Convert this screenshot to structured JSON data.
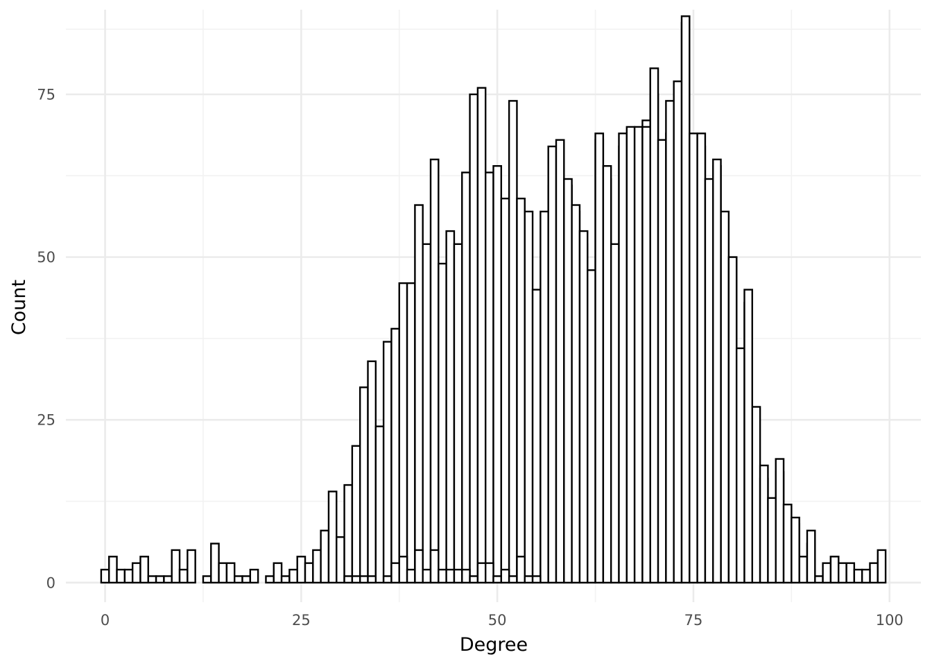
{
  "chart_data": {
    "type": "bar",
    "subtype": "histogram, two overlaid outlined series, bin width 1",
    "title": "",
    "xlabel": "Degree",
    "ylabel": "Count",
    "xlim": [
      -5,
      104
    ],
    "ylim": [
      -3,
      88
    ],
    "x_major_ticks": [
      0,
      25,
      50,
      75,
      100
    ],
    "x_minor_ticks": [
      12.5,
      37.5,
      62.5,
      87.5
    ],
    "y_major_ticks": [
      0,
      25,
      50,
      75
    ],
    "y_minor_ticks": [
      12.5,
      37.5,
      62.5,
      85
    ],
    "x_tick_labels": [
      "0",
      "25",
      "50",
      "75",
      "100"
    ],
    "y_tick_labels": [
      "0",
      "25",
      "50",
      "75"
    ],
    "grid": true,
    "legend": "none",
    "fill_color": "#ffffff",
    "outline_color": "#000000",
    "series": [
      {
        "bins": [
          [
            0,
            2
          ],
          [
            1,
            4
          ],
          [
            2,
            2
          ],
          [
            3,
            2
          ],
          [
            4,
            3
          ],
          [
            5,
            4
          ],
          [
            6,
            1
          ],
          [
            7,
            1
          ],
          [
            8,
            1
          ],
          [
            9,
            5
          ],
          [
            10,
            2
          ],
          [
            11,
            5
          ],
          [
            13,
            1
          ],
          [
            14,
            6
          ],
          [
            15,
            3
          ],
          [
            16,
            3
          ],
          [
            17,
            1
          ],
          [
            18,
            1
          ],
          [
            19,
            2
          ],
          [
            21,
            1
          ],
          [
            22,
            3
          ],
          [
            23,
            1
          ],
          [
            24,
            2
          ],
          [
            25,
            4
          ],
          [
            26,
            3
          ],
          [
            27,
            5
          ],
          [
            28,
            8
          ],
          [
            29,
            14
          ],
          [
            30,
            7
          ],
          [
            31,
            15
          ],
          [
            32,
            21
          ],
          [
            33,
            30
          ],
          [
            34,
            34
          ],
          [
            35,
            24
          ],
          [
            36,
            37
          ],
          [
            37,
            39
          ],
          [
            38,
            46
          ],
          [
            39,
            46
          ],
          [
            40,
            58
          ],
          [
            41,
            52
          ],
          [
            42,
            65
          ],
          [
            43,
            49
          ],
          [
            44,
            54
          ],
          [
            45,
            52
          ],
          [
            46,
            63
          ],
          [
            47,
            75
          ],
          [
            48,
            76
          ],
          [
            49,
            63
          ],
          [
            50,
            64
          ],
          [
            51,
            59
          ],
          [
            52,
            74
          ],
          [
            53,
            59
          ],
          [
            54,
            57
          ],
          [
            55,
            45
          ],
          [
            56,
            57
          ],
          [
            57,
            61
          ],
          [
            58,
            65
          ],
          [
            59,
            61
          ],
          [
            60,
            57
          ],
          [
            61,
            52
          ],
          [
            62,
            46
          ],
          [
            63,
            68
          ],
          [
            64,
            62
          ],
          [
            65,
            49
          ],
          [
            66,
            67
          ],
          [
            67,
            69
          ],
          [
            68,
            69
          ],
          [
            69,
            71
          ],
          [
            70,
            75
          ],
          [
            71,
            67
          ],
          [
            72,
            69
          ],
          [
            73,
            74
          ],
          [
            74,
            86
          ],
          [
            75,
            66
          ],
          [
            76,
            67
          ],
          [
            77,
            61
          ],
          [
            78,
            64
          ],
          [
            79,
            57
          ],
          [
            80,
            50
          ],
          [
            81,
            35
          ],
          [
            82,
            43
          ],
          [
            83,
            27
          ],
          [
            84,
            16
          ],
          [
            85,
            9
          ],
          [
            86,
            17
          ],
          [
            87,
            10
          ],
          [
            88,
            9
          ],
          [
            89,
            4
          ],
          [
            90,
            6
          ],
          [
            91,
            1
          ],
          [
            92,
            1
          ],
          [
            93,
            4
          ],
          [
            94,
            3
          ],
          [
            95,
            3
          ],
          [
            96,
            2
          ],
          [
            97,
            1
          ],
          [
            98,
            3
          ],
          [
            99,
            5
          ]
        ]
      },
      {
        "bins": [
          [
            31,
            1
          ],
          [
            32,
            1
          ],
          [
            33,
            1
          ],
          [
            34,
            1
          ],
          [
            36,
            1
          ],
          [
            37,
            3
          ],
          [
            38,
            4
          ],
          [
            39,
            2
          ],
          [
            40,
            5
          ],
          [
            41,
            2
          ],
          [
            42,
            5
          ],
          [
            43,
            2
          ],
          [
            44,
            2
          ],
          [
            45,
            2
          ],
          [
            46,
            2
          ],
          [
            47,
            1
          ],
          [
            48,
            3
          ],
          [
            49,
            3
          ],
          [
            50,
            1
          ],
          [
            51,
            2
          ],
          [
            52,
            1
          ],
          [
            53,
            4
          ],
          [
            54,
            1
          ],
          [
            55,
            1
          ],
          [
            57,
            67
          ],
          [
            58,
            68
          ],
          [
            59,
            62
          ],
          [
            60,
            58
          ],
          [
            61,
            54
          ],
          [
            62,
            48
          ],
          [
            63,
            69
          ],
          [
            64,
            64
          ],
          [
            65,
            52
          ],
          [
            66,
            69
          ],
          [
            67,
            70
          ],
          [
            68,
            70
          ],
          [
            69,
            70
          ],
          [
            70,
            79
          ],
          [
            71,
            68
          ],
          [
            72,
            74
          ],
          [
            73,
            77
          ],
          [
            74,
            87
          ],
          [
            75,
            69
          ],
          [
            76,
            69
          ],
          [
            77,
            62
          ],
          [
            78,
            65
          ],
          [
            80,
            50
          ],
          [
            81,
            36
          ],
          [
            82,
            45
          ],
          [
            84,
            18
          ],
          [
            85,
            13
          ],
          [
            86,
            19
          ],
          [
            87,
            12
          ],
          [
            88,
            10
          ],
          [
            90,
            8
          ],
          [
            92,
            3
          ],
          [
            93,
            4
          ],
          [
            94,
            3
          ],
          [
            97,
            2
          ]
        ]
      }
    ]
  }
}
